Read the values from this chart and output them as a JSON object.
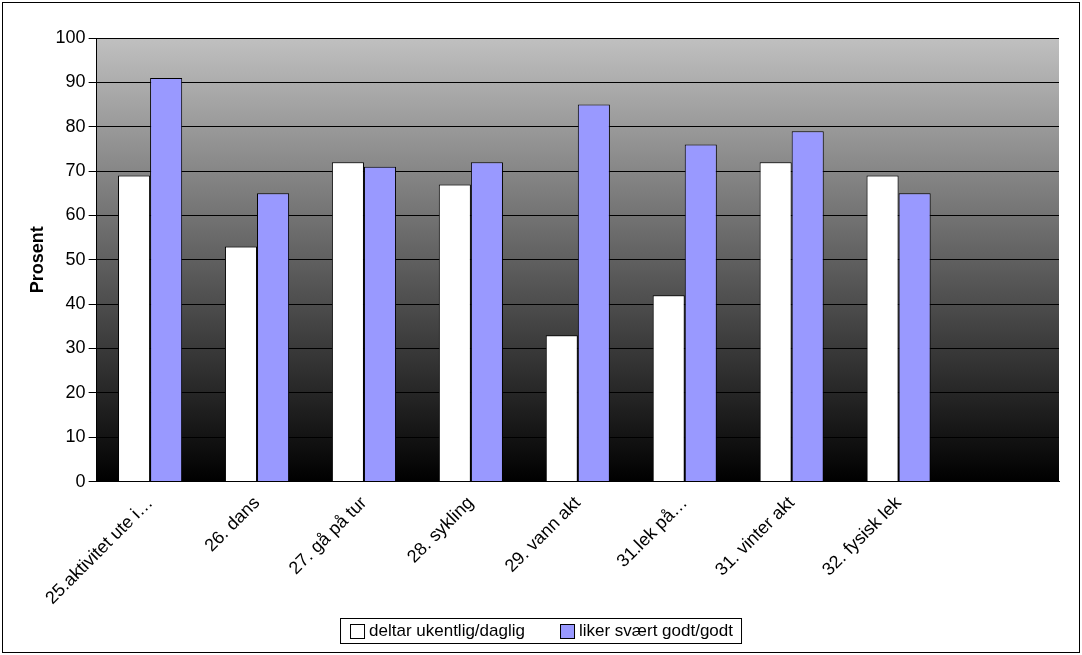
{
  "chart_data": {
    "type": "bar",
    "ylabel": "Prosent",
    "categories": [
      "25.aktivitet ute i…",
      "26. dans",
      "27. gå på tur",
      "28. sykling",
      "29. vann akt",
      "31.lek på…",
      "31. vinter akt",
      "32. fysisk lek",
      null
    ],
    "series": [
      {
        "name": "deltar ukentlig/daglig",
        "color": "#ffffff",
        "values": [
          69,
          53,
          72,
          67,
          33,
          42,
          72,
          69,
          null
        ]
      },
      {
        "name": "liker svært godt/godt",
        "color": "#9999ff",
        "values": [
          91,
          65,
          71,
          72,
          85,
          76,
          79,
          65,
          null
        ]
      }
    ],
    "ylim": [
      0,
      100
    ],
    "yticks": [
      0,
      10,
      20,
      30,
      40,
      50,
      60,
      70,
      80,
      90,
      100
    ],
    "grid": "y",
    "legend": "bottom"
  }
}
